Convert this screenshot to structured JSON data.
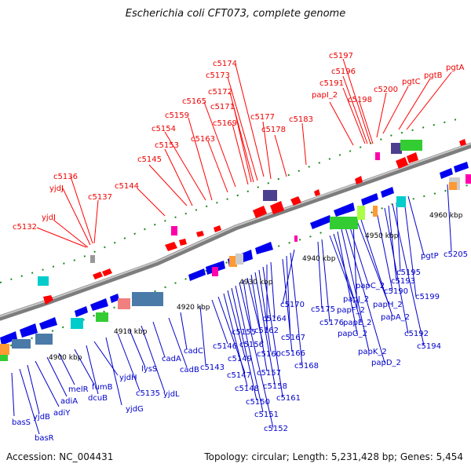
{
  "header": {
    "title": "Escherichia coli CFT073, complete genome"
  },
  "footer": {
    "accession": "Accession: NC_004431",
    "topology": "Topology: circular; Length: 5,231,428 bp; Genes: 5,454"
  },
  "scale_labels": [
    "4900 kbp",
    "4910 kbp",
    "4920 kbp",
    "4930 kbp",
    "4940 kbp",
    "4950 kbp",
    "4960 kbp"
  ],
  "upper_labels": [
    "c5132",
    "yjdI",
    "yjdJ",
    "c5136",
    "c5137",
    "c5144",
    "c5145",
    "c5153",
    "c5154",
    "c5159",
    "c5163",
    "c5165",
    "c5169",
    "c5171",
    "c5172",
    "c5173",
    "c5174",
    "c5177",
    "c5178",
    "c5183",
    "papI_2",
    "c5191",
    "c5196",
    "c5197",
    "c5198",
    "c5200",
    "pgtC",
    "pgtB",
    "pgtA"
  ],
  "lower_labels": [
    "basS",
    "basR",
    "yjdB",
    "adiY",
    "adiA",
    "melR",
    "fumB",
    "dcuB",
    "yjdH",
    "yjdG",
    "c5135",
    "lysS",
    "yjdL",
    "cadA",
    "cadB",
    "cadC",
    "c5143",
    "c5146",
    "c5147",
    "c5148",
    "c5149",
    "c5150",
    "c5151",
    "c5152",
    "c5155",
    "c5156",
    "c5157",
    "c5158",
    "c5160",
    "c5161",
    "c5162",
    "c5164",
    "c5166",
    "c5167",
    "c5168",
    "c5170",
    "c5175",
    "c5176",
    "papJ_2",
    "papE_2",
    "papG_2",
    "papK_2",
    "papD_2",
    "papC_2",
    "papF_2",
    "papH_2",
    "papA_2",
    "c5190",
    "c5192",
    "c5193",
    "c5194",
    "c5195",
    "c5199",
    "pgtP",
    "c5205"
  ],
  "colors": {
    "red": "#ff0000",
    "blue": "#0000cc",
    "backbone": "#888888",
    "tick": "#1a8a1a"
  }
}
